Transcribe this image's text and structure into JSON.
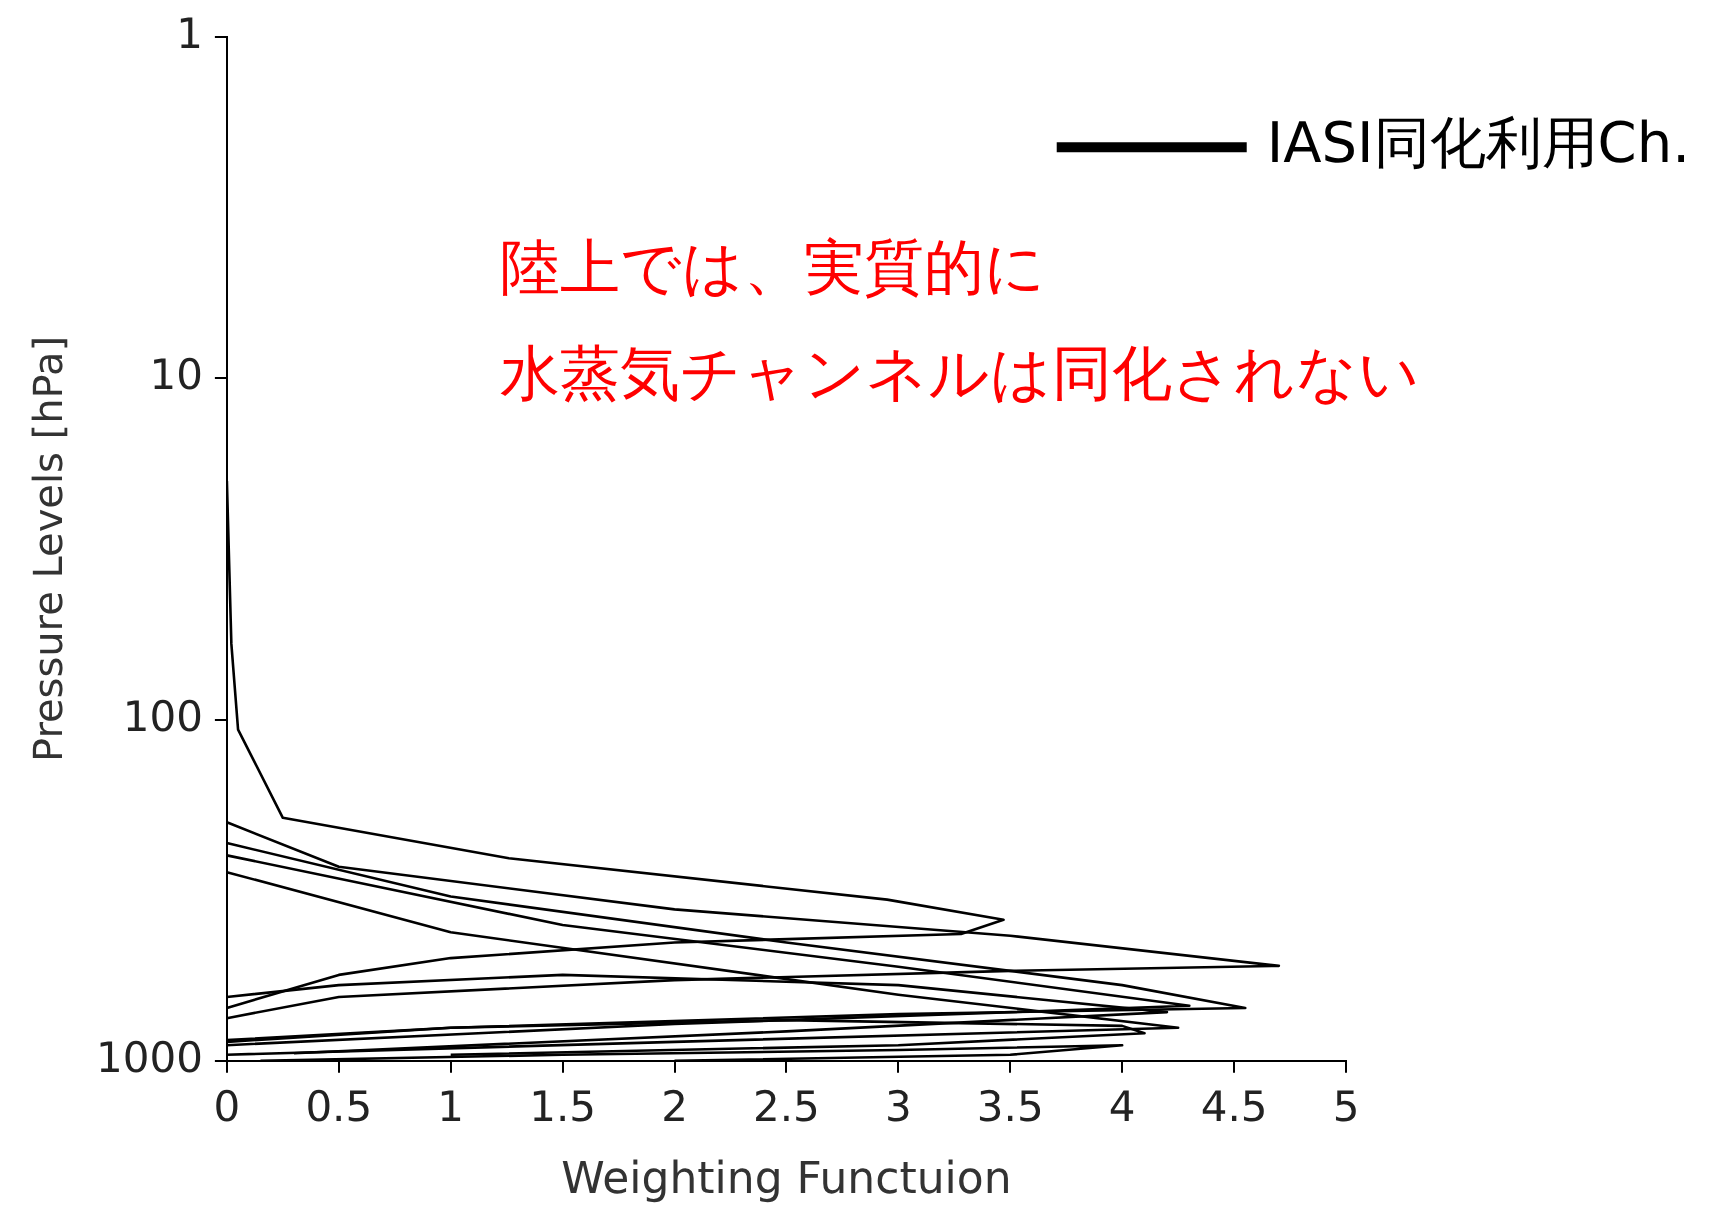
{
  "chart_data": {
    "type": "line",
    "xlabel": "Weighting Functuion",
    "ylabel": "Pressure Levels [hPa]",
    "log": "y",
    "xlim": [
      0,
      5
    ],
    "xticks": [
      0,
      0.5,
      1,
      1.5,
      2,
      2.5,
      3,
      3.5,
      4,
      4.5,
      5
    ],
    "ylim": [
      1000,
      1
    ],
    "yticks": [
      1,
      10,
      100,
      1000
    ],
    "grid": false,
    "legend": "top right",
    "marker": "none",
    "line_style": "solid",
    "annotations": [
      "陸上では、実質的に",
      "水蒸気チャンネルは同化されない"
    ],
    "series": [
      {
        "name": "IASI同化利用Ch.",
        "color": "#000000",
        "x": [
          0,
          0.02,
          0.05,
          0.25,
          1.26,
          2.95,
          3.47,
          3.28,
          2,
          1,
          0.5,
          0
        ],
        "values": [
          20,
          60,
          107,
          194,
          255,
          337,
          386,
          425,
          450,
          500,
          560,
          700
        ]
      },
      {
        "color": "#000000",
        "x": [
          0,
          0.5,
          2,
          3.5,
          4.7,
          3.5,
          2,
          0.5,
          0
        ],
        "values": [
          200,
          270,
          360,
          430,
          527,
          545,
          580,
          650,
          750
        ]
      },
      {
        "color": "#000000",
        "x": [
          0,
          1,
          2.5,
          4,
          4.55,
          3,
          1,
          0
        ],
        "values": [
          230,
          330,
          450,
          600,
          700,
          730,
          800,
          880
        ]
      },
      {
        "color": "#000000",
        "x": [
          0,
          1.5,
          3,
          4.3,
          2,
          0
        ],
        "values": [
          250,
          400,
          530,
          690,
          780,
          900
        ]
      },
      {
        "color": "#000000",
        "x": [
          0,
          1,
          3,
          4.25,
          2,
          0
        ],
        "values": [
          280,
          420,
          640,
          800,
          880,
          960
        ]
      },
      {
        "color": "#000000",
        "x": [
          0,
          0.5,
          1.5,
          3,
          4.2,
          2.5,
          0.3
        ],
        "values": [
          650,
          600,
          560,
          600,
          720,
          820,
          950
        ]
      },
      {
        "color": "#000000",
        "x": [
          0,
          1,
          2.5,
          4,
          4.1,
          3,
          1
        ],
        "values": [
          870,
          800,
          760,
          790,
          830,
          900,
          960
        ]
      },
      {
        "color": "#000000",
        "x": [
          0.15,
          1.5,
          3,
          4.0,
          3.5,
          2
        ],
        "values": [
          1000,
          960,
          930,
          900,
          960,
          1000
        ]
      }
    ]
  }
}
